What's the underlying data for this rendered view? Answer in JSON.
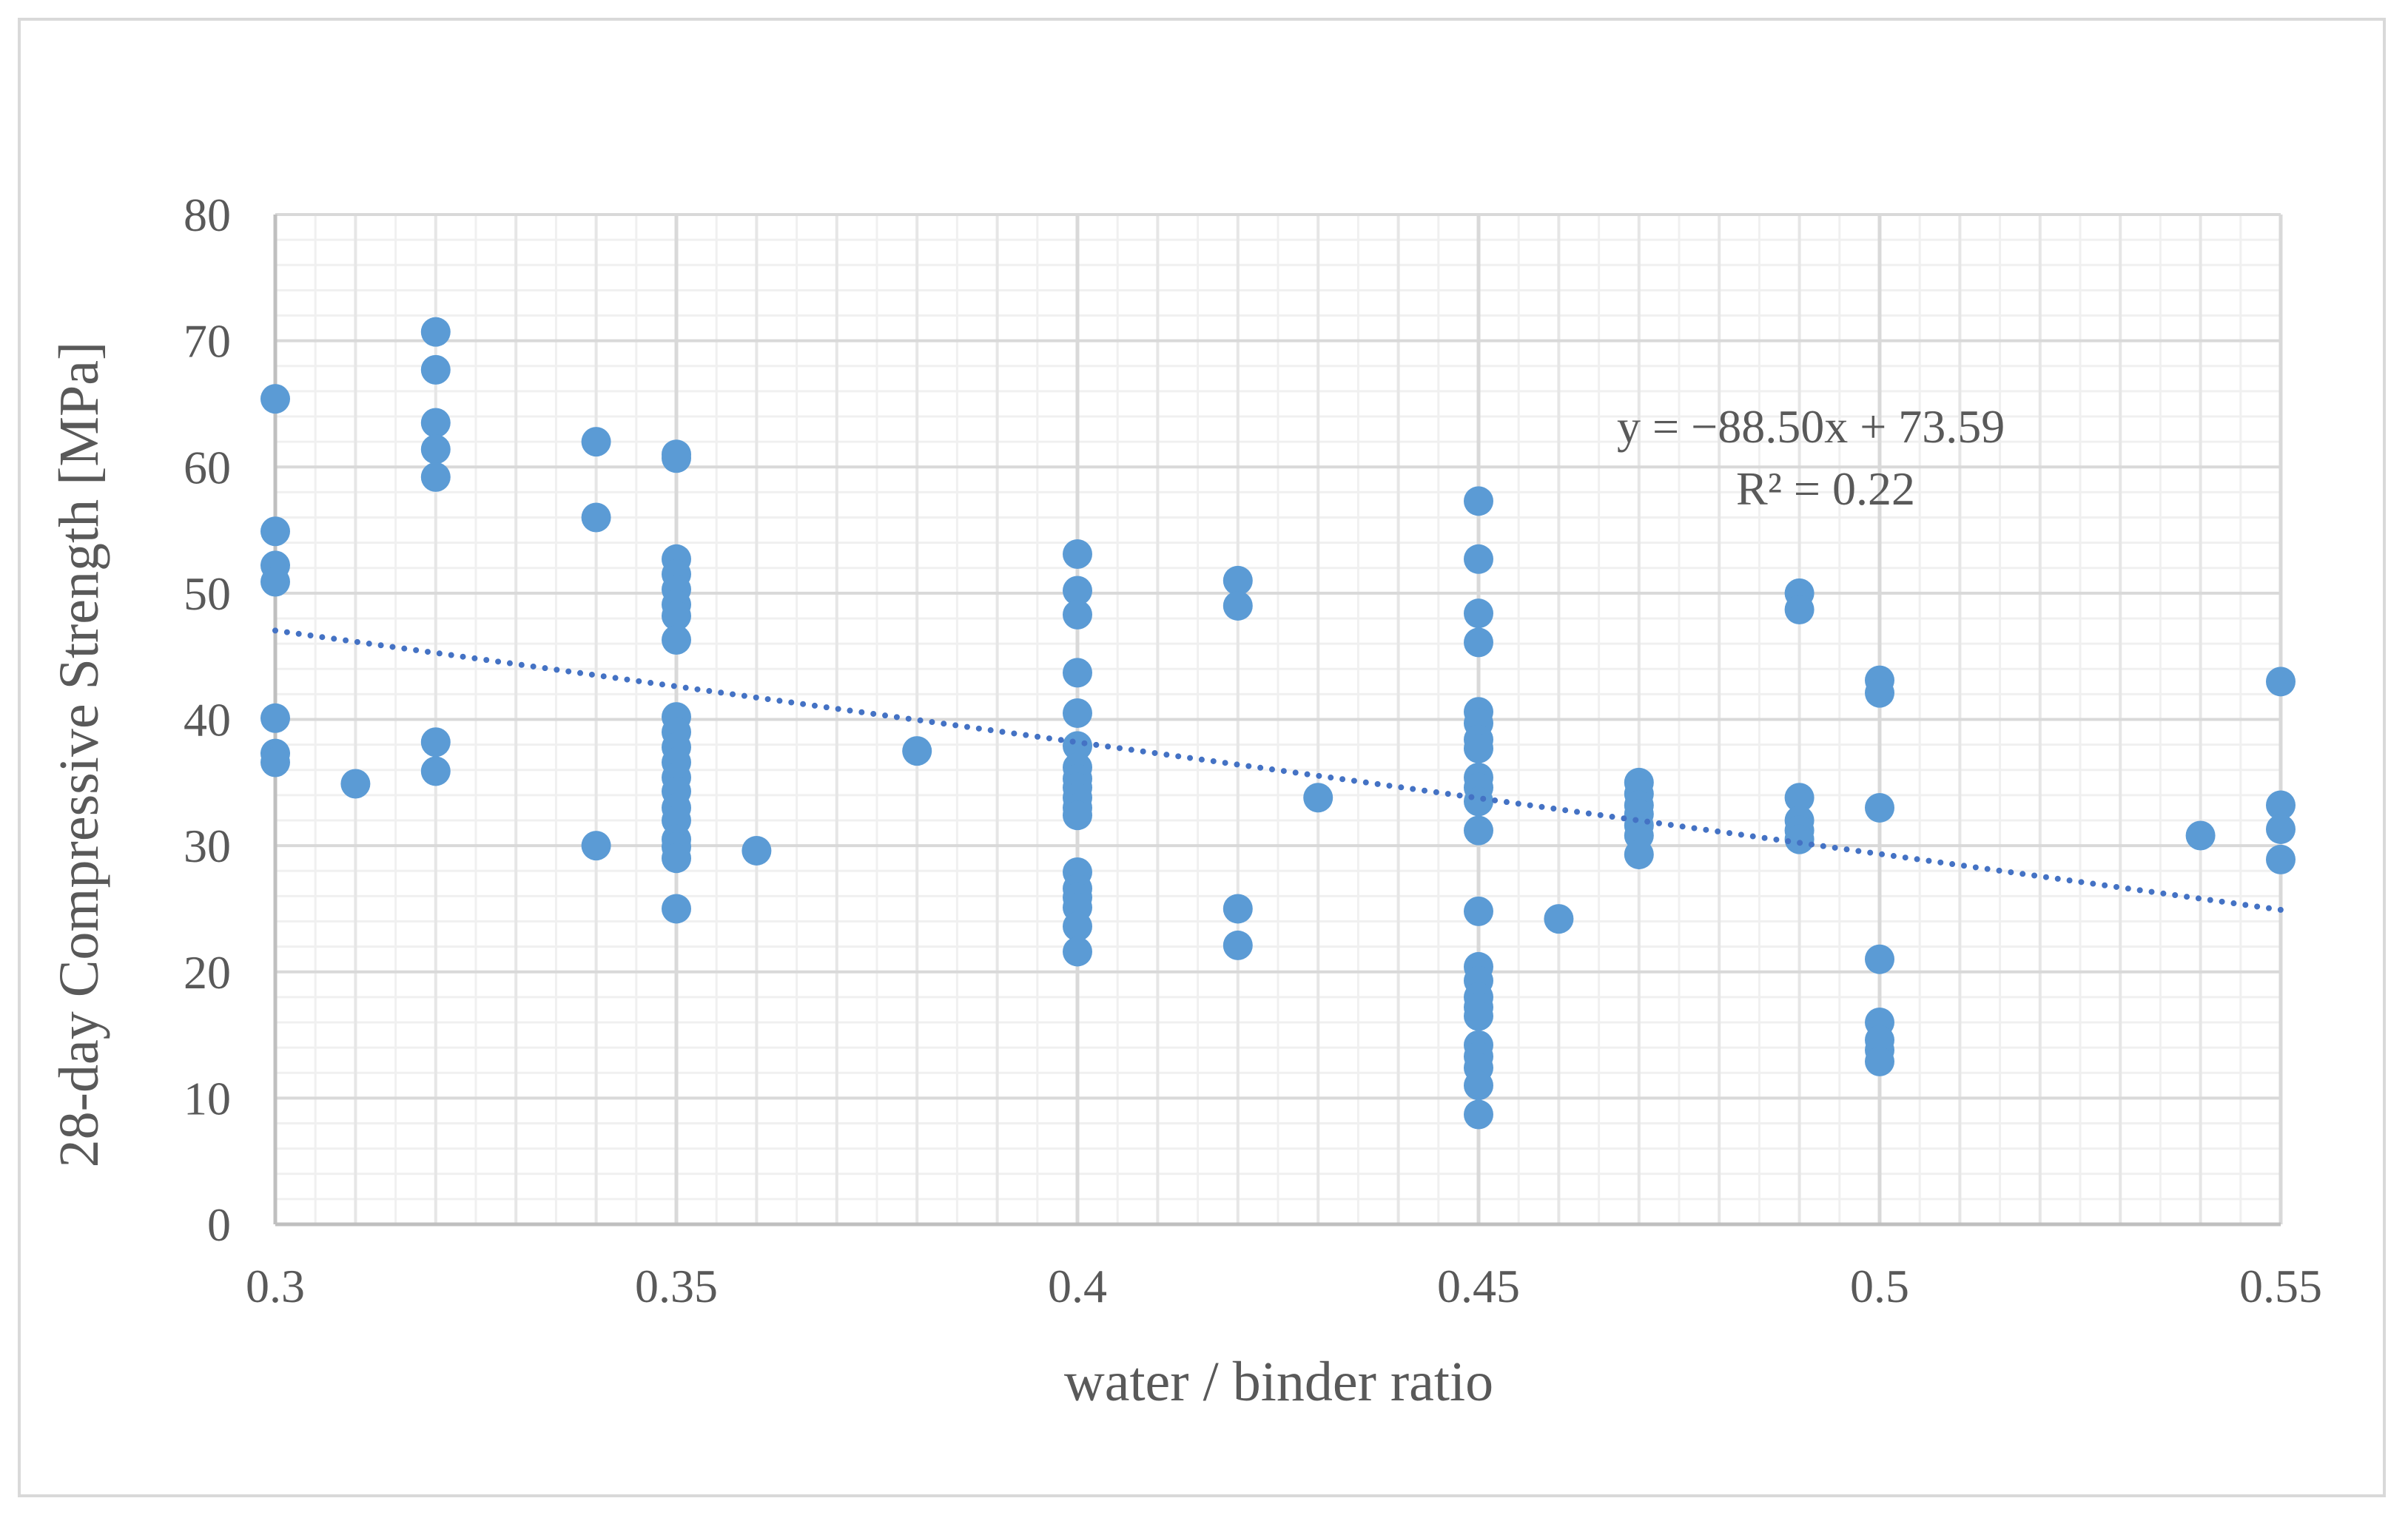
{
  "chart_data": {
    "type": "scatter",
    "title": "",
    "xlabel": "water / binder ratio",
    "ylabel": "28-day Compressive Strength [MPa]",
    "xlim": [
      0.3,
      0.55
    ],
    "ylim": [
      0,
      80
    ],
    "x_ticks": [
      "0.3",
      "0.35",
      "0.4",
      "0.45",
      "0.5",
      "0.55"
    ],
    "y_ticks": [
      "0",
      "10",
      "20",
      "30",
      "40",
      "50",
      "60",
      "70",
      "80"
    ],
    "grid": true,
    "marker_color": "#5b9bd5",
    "trendline_color": "#4472c4",
    "trendline": {
      "slope": -88.5,
      "intercept": 73.59,
      "x_range": [
        0.3,
        0.55
      ]
    },
    "equation_label": "y = −88.50x + 73.59",
    "r2_label": "R² = 0.22",
    "series": [
      {
        "name": "Compressive strength",
        "points": [
          [
            0.3,
            65.4
          ],
          [
            0.3,
            54.9
          ],
          [
            0.3,
            52.2
          ],
          [
            0.3,
            50.9
          ],
          [
            0.3,
            40.1
          ],
          [
            0.3,
            37.3
          ],
          [
            0.3,
            36.6
          ],
          [
            0.31,
            34.9
          ],
          [
            0.32,
            70.7
          ],
          [
            0.32,
            67.7
          ],
          [
            0.32,
            63.5
          ],
          [
            0.32,
            61.4
          ],
          [
            0.32,
            59.2
          ],
          [
            0.32,
            38.2
          ],
          [
            0.32,
            35.9
          ],
          [
            0.34,
            62.0
          ],
          [
            0.34,
            56.0
          ],
          [
            0.34,
            30.0
          ],
          [
            0.35,
            61.0
          ],
          [
            0.35,
            60.7
          ],
          [
            0.35,
            52.7
          ],
          [
            0.35,
            51.5
          ],
          [
            0.35,
            50.3
          ],
          [
            0.35,
            49.1
          ],
          [
            0.35,
            48.2
          ],
          [
            0.35,
            46.3
          ],
          [
            0.35,
            40.2
          ],
          [
            0.35,
            39.0
          ],
          [
            0.35,
            37.8
          ],
          [
            0.35,
            36.6
          ],
          [
            0.35,
            35.4
          ],
          [
            0.35,
            34.3
          ],
          [
            0.35,
            33.0
          ],
          [
            0.35,
            32.0
          ],
          [
            0.35,
            30.5
          ],
          [
            0.35,
            29.9
          ],
          [
            0.35,
            29.0
          ],
          [
            0.35,
            25.0
          ],
          [
            0.36,
            29.6
          ],
          [
            0.38,
            37.5
          ],
          [
            0.4,
            53.1
          ],
          [
            0.4,
            50.2
          ],
          [
            0.4,
            48.3
          ],
          [
            0.4,
            43.7
          ],
          [
            0.4,
            40.5
          ],
          [
            0.4,
            37.9
          ],
          [
            0.4,
            36.2
          ],
          [
            0.4,
            35.3
          ],
          [
            0.4,
            34.6
          ],
          [
            0.4,
            33.8
          ],
          [
            0.4,
            33.0
          ],
          [
            0.4,
            32.4
          ],
          [
            0.4,
            27.9
          ],
          [
            0.4,
            26.6
          ],
          [
            0.4,
            25.9
          ],
          [
            0.4,
            25.1
          ],
          [
            0.4,
            23.6
          ],
          [
            0.4,
            21.6
          ],
          [
            0.42,
            51.0
          ],
          [
            0.42,
            49.0
          ],
          [
            0.42,
            25.0
          ],
          [
            0.42,
            22.1
          ],
          [
            0.43,
            33.8
          ],
          [
            0.45,
            57.3
          ],
          [
            0.45,
            52.7
          ],
          [
            0.45,
            48.4
          ],
          [
            0.45,
            46.1
          ],
          [
            0.45,
            40.6
          ],
          [
            0.45,
            39.7
          ],
          [
            0.45,
            38.4
          ],
          [
            0.45,
            37.7
          ],
          [
            0.45,
            35.4
          ],
          [
            0.45,
            34.6
          ],
          [
            0.45,
            33.5
          ],
          [
            0.45,
            31.2
          ],
          [
            0.45,
            24.8
          ],
          [
            0.45,
            20.4
          ],
          [
            0.45,
            19.3
          ],
          [
            0.45,
            18.0
          ],
          [
            0.45,
            17.2
          ],
          [
            0.45,
            16.5
          ],
          [
            0.45,
            14.2
          ],
          [
            0.45,
            13.3
          ],
          [
            0.45,
            12.4
          ],
          [
            0.45,
            11.0
          ],
          [
            0.45,
            8.7
          ],
          [
            0.46,
            24.2
          ],
          [
            0.47,
            35.0
          ],
          [
            0.47,
            34.1
          ],
          [
            0.47,
            33.2
          ],
          [
            0.47,
            32.5
          ],
          [
            0.47,
            31.6
          ],
          [
            0.47,
            30.8
          ],
          [
            0.47,
            29.3
          ],
          [
            0.49,
            50.0
          ],
          [
            0.49,
            48.7
          ],
          [
            0.49,
            33.8
          ],
          [
            0.49,
            32.0
          ],
          [
            0.49,
            31.2
          ],
          [
            0.49,
            30.5
          ],
          [
            0.5,
            43.1
          ],
          [
            0.5,
            42.1
          ],
          [
            0.5,
            33.0
          ],
          [
            0.5,
            21.0
          ],
          [
            0.5,
            16.0
          ],
          [
            0.5,
            14.6
          ],
          [
            0.5,
            13.8
          ],
          [
            0.5,
            12.9
          ],
          [
            0.54,
            30.8
          ],
          [
            0.55,
            43.0
          ],
          [
            0.55,
            33.2
          ],
          [
            0.55,
            31.3
          ],
          [
            0.55,
            28.9
          ]
        ]
      }
    ]
  }
}
